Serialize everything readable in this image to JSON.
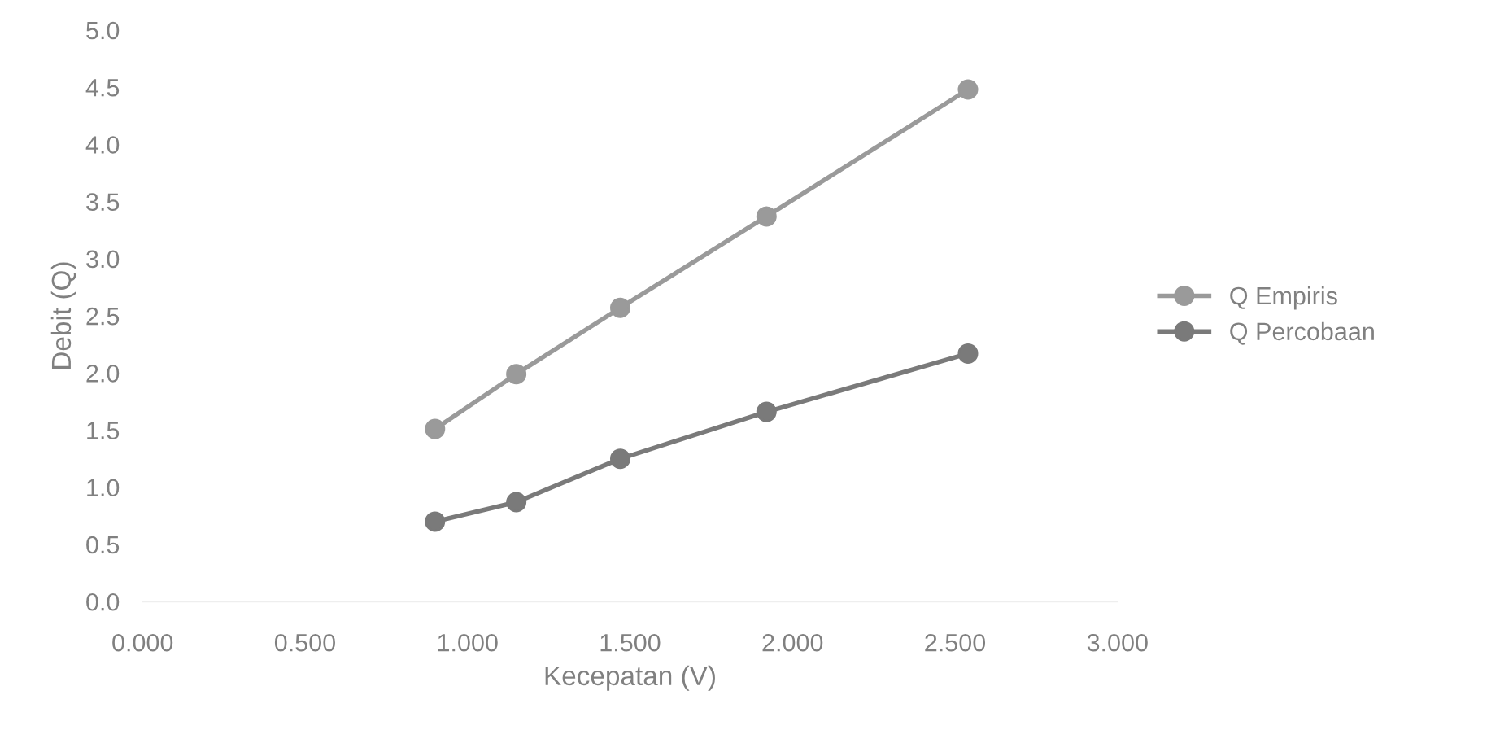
{
  "chart_data": {
    "type": "line",
    "xlabel": "Kecepatan (V)",
    "ylabel": "Debit (Q)",
    "x": [
      0.9,
      1.15,
      1.47,
      1.92,
      2.54
    ],
    "series": [
      {
        "name": "Q Empiris",
        "color": "#9a9a9a",
        "values": [
          1.51,
          1.99,
          2.57,
          3.37,
          4.48
        ]
      },
      {
        "name": "Q Percobaan",
        "color": "#7a7a7a",
        "values": [
          0.7,
          0.87,
          1.25,
          1.66,
          2.17
        ]
      }
    ],
    "xlim": [
      0,
      3
    ],
    "xticks": [
      {
        "value": 0,
        "label": "0.000"
      },
      {
        "value": 0.5,
        "label": "0.500"
      },
      {
        "value": 1,
        "label": "1.000"
      },
      {
        "value": 1.5,
        "label": "1.500"
      },
      {
        "value": 2,
        "label": "2.000"
      },
      {
        "value": 2.5,
        "label": "2.500"
      },
      {
        "value": 3,
        "label": "3.000"
      }
    ],
    "ylim": [
      0,
      5
    ],
    "yticks": [
      {
        "value": 0,
        "label": "0.0"
      },
      {
        "value": 0.5,
        "label": "0.5"
      },
      {
        "value": 1,
        "label": "1.0"
      },
      {
        "value": 1.5,
        "label": "1.5"
      },
      {
        "value": 2,
        "label": "2.0"
      },
      {
        "value": 2.5,
        "label": "2.5"
      },
      {
        "value": 3,
        "label": "3.0"
      },
      {
        "value": 3.5,
        "label": "3.5"
      },
      {
        "value": 4,
        "label": "4.0"
      },
      {
        "value": 4.5,
        "label": "4.5"
      },
      {
        "value": 5,
        "label": "5.0"
      }
    ],
    "marker": "circle",
    "legend": "right"
  }
}
